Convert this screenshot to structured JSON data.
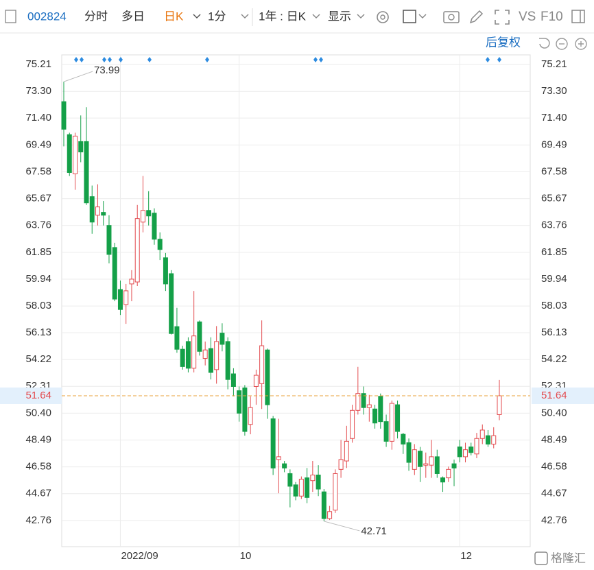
{
  "toolbar": {
    "code": "002824",
    "tabs": [
      "分时",
      "多日",
      "日K",
      "1分"
    ],
    "period": "1年 : 日K",
    "display": "显示",
    "vs": "VS",
    "f10": "F10",
    "adjust": "后复权"
  },
  "watermark": "格隆汇",
  "chart_data": {
    "type": "candlestick",
    "categories": [
      null,
      null,
      null,
      null,
      null,
      null,
      null,
      null,
      null,
      null,
      "2022/09",
      null,
      null,
      null,
      null,
      null,
      null,
      null,
      null,
      null,
      null,
      null,
      null,
      null,
      null,
      null,
      null,
      null,
      null,
      null,
      null,
      "10",
      null,
      null,
      null,
      null,
      null,
      null,
      null,
      null,
      null,
      null,
      null,
      null,
      null,
      null,
      null,
      null,
      null,
      null,
      null,
      null,
      null,
      null,
      null,
      null,
      null,
      null,
      null,
      null,
      null,
      null,
      null,
      null,
      null,
      null,
      null,
      null,
      null,
      null,
      "12",
      null,
      null,
      null,
      null,
      null,
      null,
      null
    ],
    "open": [
      72.57,
      70.22,
      67.43,
      69.73,
      69.73,
      65.81,
      64.49,
      64.69,
      63.76,
      62.19,
      59.2,
      58.13,
      59.6,
      59.74,
      64.0,
      64.83,
      64.64,
      62.78,
      61.46,
      60.33,
      56.56,
      54.95,
      55.5,
      53.6,
      56.9,
      54.3,
      55.0,
      53.5,
      56.1,
      55.5,
      53.2,
      52.0,
      52.2,
      49.6,
      52.3,
      52.5,
      54.9,
      50.0,
      47.1,
      46.8,
      46.1,
      45.3,
      44.5,
      45.8,
      45.6,
      46.0,
      44.8,
      42.9,
      43.5,
      46.4,
      47.0,
      48.6,
      50.6,
      51.8,
      50.8,
      50.7,
      51.6,
      49.8,
      48.4,
      51.0,
      48.9,
      48.3,
      46.4,
      47.7,
      46.7,
      46.7,
      47.3,
      45.8,
      45.8,
      46.8,
      48.0,
      47.3,
      48.0,
      47.5,
      48.6,
      48.8,
      48.2,
      50.3
    ],
    "high": [
      73.99,
      70.36,
      70.36,
      71.59,
      72.18,
      66.6,
      66.69,
      65.5,
      64.49,
      62.53,
      59.84,
      59.6,
      60.58,
      65.22,
      67.28,
      66.2,
      64.98,
      63.27,
      61.8,
      60.58,
      57.9,
      55.2,
      55.8,
      59.1,
      57.0,
      55.5,
      55.8,
      56.6,
      56.8,
      55.8,
      53.6,
      52.3,
      52.4,
      51.6,
      53.5,
      57.0,
      55.0,
      50.2,
      50.0,
      47.0,
      46.4,
      45.5,
      45.9,
      46.5,
      47.0,
      46.7,
      45.0,
      43.8,
      46.4,
      48.5,
      49.5,
      51.0,
      53.7,
      52.3,
      51.7,
      51.0,
      51.8,
      50.3,
      51.3,
      51.3,
      49.0,
      48.6,
      48.2,
      48.0,
      47.6,
      48.5,
      47.8,
      45.9,
      46.6,
      47.1,
      48.5,
      48.3,
      48.3,
      49.0,
      49.6,
      49.2,
      49.4,
      52.77
    ],
    "low": [
      69.39,
      67.28,
      66.3,
      68.26,
      65.22,
      63.17,
      63.76,
      63.76,
      61.06,
      58.37,
      57.39,
      56.76,
      58.37,
      59.45,
      63.27,
      63.76,
      62.39,
      61.3,
      59.1,
      56.0,
      54.7,
      53.5,
      53.3,
      53.3,
      54.5,
      53.8,
      52.8,
      52.5,
      54.8,
      52.1,
      51.6,
      49.8,
      48.8,
      48.9,
      51.0,
      50.7,
      50.0,
      46.0,
      44.7,
      46.2,
      43.7,
      44.2,
      44.3,
      44.0,
      44.8,
      44.5,
      42.71,
      42.8,
      43.3,
      45.8,
      46.5,
      48.3,
      50.3,
      50.3,
      49.8,
      49.3,
      49.3,
      48.0,
      47.8,
      48.6,
      47.5,
      46.3,
      46.0,
      45.5,
      45.8,
      45.8,
      45.8,
      44.8,
      45.5,
      45.2,
      46.9,
      46.9,
      47.4,
      47.2,
      48.2,
      48.0,
      47.9,
      49.9
    ],
    "close": [
      70.61,
      67.53,
      70.12,
      68.99,
      65.37,
      64.0,
      65.08,
      64.49,
      61.7,
      58.52,
      57.78,
      59.11,
      59.94,
      64.25,
      64.83,
      64.44,
      62.78,
      62.05,
      59.6,
      56.07,
      54.95,
      53.72,
      53.6,
      55.9,
      54.8,
      54.9,
      53.3,
      55.5,
      55.3,
      52.8,
      52.3,
      50.4,
      49.1,
      50.8,
      53.1,
      55.2,
      51.0,
      46.5,
      47.3,
      46.5,
      45.2,
      44.5,
      45.7,
      44.4,
      46.0,
      45.0,
      42.9,
      43.4,
      46.1,
      47.1,
      48.4,
      50.6,
      51.8,
      50.8,
      51.0,
      49.7,
      49.8,
      48.4,
      51.1,
      49.1,
      48.2,
      46.9,
      47.8,
      46.6,
      46.8,
      47.3,
      46.1,
      45.5,
      46.4,
      46.5,
      47.3,
      47.8,
      47.6,
      48.6,
      49.2,
      48.2,
      48.8,
      51.64
    ],
    "up_color": "#e34a4e",
    "down_color": "#14a048",
    "ylim": [
      40.9,
      75.9
    ],
    "yticks": [
      75.21,
      {
        "value": 73.3,
        "label": "73.30"
      },
      {
        "value": 71.4,
        "label": "71.40"
      },
      69.49,
      67.58,
      65.67,
      63.76,
      61.85,
      59.94,
      58.03,
      56.13,
      54.22,
      52.31,
      {
        "value": 50.4,
        "label": "50.40"
      },
      48.49,
      46.58,
      44.67,
      42.76
    ],
    "last_price": 51.64,
    "last_price_color": "#e34a4e",
    "high_annotation": 73.99,
    "low_annotation": 42.71,
    "grid": true
  }
}
